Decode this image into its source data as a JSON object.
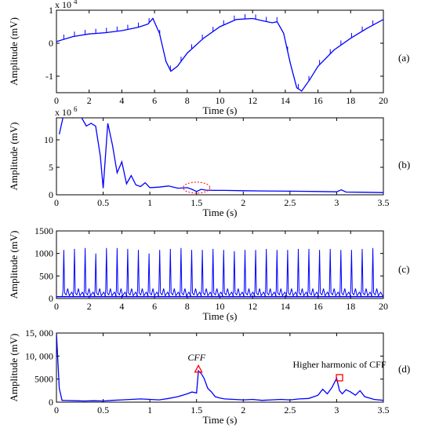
{
  "chart_data": [
    {
      "type": "line",
      "panel_label": "(a)",
      "xlabel": "Time (s)",
      "ylabel": "Amplitude (mV)",
      "y_multiplier_label": "x 10",
      "y_multiplier_exp": "4",
      "xlim": [
        0,
        20
      ],
      "ylim": [
        -1.5,
        1
      ],
      "xticks": [
        0,
        2,
        4,
        6,
        8,
        10,
        12,
        14,
        16,
        18,
        20
      ],
      "yticks": [
        -1,
        0,
        1
      ],
      "series": [
        {
          "color": "#0000ff",
          "x": [
            0,
            1,
            2,
            3,
            4,
            5,
            5.6,
            5.9,
            6.3,
            6.7,
            7.0,
            7.4,
            8,
            9,
            10,
            11,
            12,
            12.6,
            13.2,
            13.5,
            13.9,
            14.3,
            14.7,
            15.0,
            15.5,
            16,
            17,
            18,
            19,
            20
          ],
          "y": [
            0.05,
            0.2,
            0.28,
            0.32,
            0.38,
            0.48,
            0.58,
            0.75,
            0.3,
            -0.55,
            -0.85,
            -0.7,
            -0.3,
            0.15,
            0.5,
            0.72,
            0.75,
            0.68,
            0.62,
            0.65,
            0.3,
            -0.6,
            -1.35,
            -1.45,
            -1.1,
            -0.7,
            -0.2,
            0.15,
            0.45,
            0.72
          ]
        }
      ]
    },
    {
      "type": "line",
      "panel_label": "(b)",
      "xlabel": "Time (s)",
      "ylabel": "Amplitude (mV)",
      "y_multiplier_label": "x 10",
      "y_multiplier_exp": "6",
      "xlim": [
        0,
        3.5
      ],
      "ylim": [
        0,
        14
      ],
      "xticks": [
        0,
        0.5,
        1,
        1.5,
        2,
        2.5,
        3,
        3.5
      ],
      "xtick_labels": [
        "0",
        "0.5",
        "1",
        "1.5",
        "2",
        "2.5",
        "3",
        "3.5"
      ],
      "yticks": [
        0,
        5,
        10
      ],
      "series": [
        {
          "color": "#0000ff",
          "x": [
            0.03,
            0.07,
            0.12,
            0.17,
            0.22,
            0.27,
            0.32,
            0.37,
            0.42,
            0.47,
            0.5,
            0.55,
            0.6,
            0.65,
            0.7,
            0.75,
            0.8,
            0.85,
            0.9,
            0.95,
            1.0,
            1.1,
            1.2,
            1.3,
            1.4,
            1.45,
            1.5,
            1.55,
            1.6,
            1.7,
            1.8,
            2.0,
            2.2,
            2.5,
            2.8,
            3.0,
            3.05,
            3.1,
            3.3,
            3.5
          ],
          "y": [
            11,
            14,
            15,
            14,
            15,
            14,
            12.5,
            13,
            12.5,
            7,
            1.2,
            13,
            9,
            4,
            6,
            2,
            3.5,
            1.8,
            1.5,
            2.2,
            1.3,
            1.4,
            1.6,
            1.2,
            1.3,
            1.0,
            0.6,
            1.0,
            0.85,
            0.8,
            0.8,
            0.75,
            0.7,
            0.65,
            0.6,
            0.55,
            0.9,
            0.5,
            0.45,
            0.4
          ]
        }
      ],
      "annotations": [
        {
          "type": "dashed-ellipse",
          "color": "#ff0000",
          "x": 1.5,
          "y": 1.3
        }
      ]
    },
    {
      "type": "line",
      "panel_label": "(c)",
      "xlabel": "Time (s)",
      "ylabel": "Amplitude (mV)",
      "xlim": [
        0,
        20
      ],
      "ylim": [
        0,
        1500
      ],
      "xticks": [
        0,
        2,
        4,
        6,
        8,
        10,
        12,
        14,
        16,
        18,
        20
      ],
      "yticks": [
        0,
        500,
        1000,
        1500
      ],
      "spikes": {
        "color": "#0000ff",
        "start": 0.45,
        "period": 0.652,
        "count": 30,
        "heights": [
          1080,
          1100,
          1120,
          1000,
          1120,
          1120,
          1100,
          1080,
          1000,
          1080,
          1100,
          1120,
          1080,
          1080,
          1100,
          1080,
          1050,
          1080,
          1080,
          1100,
          1080,
          1080,
          1100,
          1100,
          1080,
          1100,
          1080,
          1080,
          1100,
          1120
        ],
        "baseline": 80
      }
    },
    {
      "type": "line",
      "panel_label": "(d)",
      "xlabel": "Time (s)",
      "ylabel": "Amplitude (mV)",
      "xlim": [
        0,
        3.5
      ],
      "ylim": [
        0,
        15000
      ],
      "xticks": [
        0,
        0.5,
        1,
        1.5,
        2,
        2.5,
        3,
        3.5
      ],
      "xtick_labels": [
        "0",
        "0.5",
        "1",
        "1.5",
        "2",
        "2.5",
        "3",
        "3.5"
      ],
      "yticks": [
        0,
        5000,
        10000,
        15000
      ],
      "ytick_labels": [
        "0",
        "5000",
        "10, 000",
        "15, 000"
      ],
      "series": [
        {
          "color": "#0000ff",
          "x": [
            0.0,
            0.03,
            0.06,
            0.1,
            0.2,
            0.3,
            0.4,
            0.5,
            0.6,
            0.7,
            0.8,
            0.9,
            1.0,
            1.1,
            1.2,
            1.3,
            1.35,
            1.4,
            1.45,
            1.5,
            1.52,
            1.55,
            1.58,
            1.62,
            1.66,
            1.7,
            1.75,
            1.8,
            1.9,
            2.0,
            2.1,
            2.2,
            2.3,
            2.4,
            2.5,
            2.6,
            2.7,
            2.8,
            2.85,
            2.9,
            2.95,
            3.0,
            3.03,
            3.06,
            3.1,
            3.15,
            3.2,
            3.25,
            3.3,
            3.4,
            3.5
          ],
          "y": [
            15000,
            3000,
            400,
            350,
            300,
            250,
            300,
            250,
            400,
            500,
            600,
            700,
            600,
            500,
            800,
            1200,
            1500,
            1800,
            2200,
            2000,
            6800,
            6200,
            5200,
            3000,
            2200,
            1200,
            900,
            700,
            600,
            500,
            600,
            400,
            500,
            600,
            500,
            700,
            800,
            1500,
            2800,
            1800,
            3200,
            5200,
            2500,
            1800,
            2700,
            2200,
            1500,
            2500,
            1200,
            600,
            400
          ]
        }
      ],
      "markers": [
        {
          "shape": "triangle",
          "color": "#ff0000",
          "x": 1.52,
          "y": 7200
        },
        {
          "shape": "square",
          "color": "#ff0000",
          "x": 3.03,
          "y": 5300
        }
      ],
      "annotations": [
        {
          "text": "CFF",
          "x": 1.5,
          "y": 9000,
          "italic": true
        },
        {
          "text": "Higher harmonic of CFF",
          "x": 3.03,
          "y": 7500
        }
      ]
    }
  ]
}
